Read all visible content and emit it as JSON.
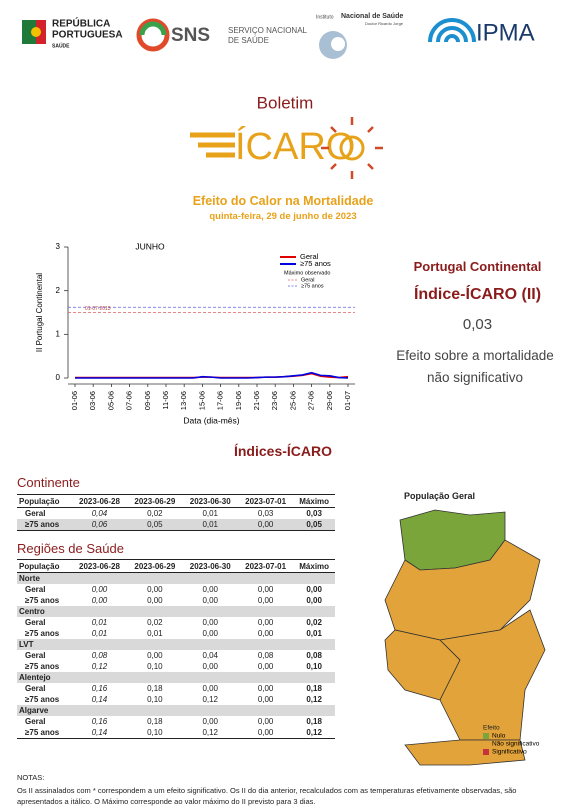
{
  "header": {
    "rp_line1": "REPÚBLICA",
    "rp_line2": "PORTUGUESA",
    "rp_sub": "SAÚDE",
    "sns": "SNS",
    "sns_line1": "SERVIÇO NACIONAL",
    "sns_line2": "DE SAÚDE",
    "insa_pre": "Instituto",
    "insa_name": "Nacional de Saúde",
    "insa_sub": "Doutor Ricardo Jorge",
    "ipma": "IPMA"
  },
  "bulletin": {
    "kicker": "Boletim",
    "brand": "ÍCARO",
    "title": "Efeito do Calor na Mortalidade",
    "date": "quinta-feira, 29 de junho de 2023"
  },
  "chart_data": {
    "type": "line",
    "title": "JUNHO",
    "x_label": "Data (dia-mês)",
    "y_label": "II Portugal Continental",
    "categories": [
      "01-06",
      null,
      "03-06",
      null,
      "05-06",
      null,
      "07-06",
      null,
      "09-06",
      null,
      "11-06",
      null,
      "13-06",
      null,
      "15-06",
      null,
      "17-06",
      null,
      "19-06",
      null,
      "21-06",
      null,
      "23-06",
      null,
      "25-06",
      null,
      "27-06",
      null,
      "29-06",
      null,
      "01-07"
    ],
    "series": [
      {
        "name": "Geral",
        "color": "#e00000",
        "values": [
          0.01,
          0.01,
          0.01,
          0.01,
          0.01,
          0.01,
          0.01,
          0.01,
          0.01,
          0.01,
          0.01,
          0.01,
          0.01,
          0.01,
          0.02,
          0.02,
          0.01,
          0.01,
          0.01,
          0.01,
          0.01,
          0.02,
          0.02,
          0.03,
          0.04,
          0.06,
          0.1,
          0.04,
          0.02,
          0.01,
          0.03
        ]
      },
      {
        "name": "≥75 anos",
        "color": "#0000e0",
        "values": [
          0.0,
          0.0,
          0.0,
          0.0,
          0.0,
          0.0,
          0.0,
          0.0,
          0.0,
          0.0,
          0.0,
          0.0,
          0.0,
          0.0,
          0.03,
          0.02,
          0.0,
          0.0,
          0.0,
          0.0,
          0.01,
          0.02,
          0.02,
          0.03,
          0.05,
          0.07,
          0.12,
          0.06,
          0.05,
          0.01,
          0.0
        ]
      }
    ],
    "reference_title": "Máximo observado",
    "reference_lines": [
      {
        "name": "Geral",
        "color": "#e06060",
        "value": 1.5
      },
      {
        "name": "≥75 anos",
        "color": "#6060e0",
        "value": 1.62
      }
    ],
    "annotation": "01-07-2013",
    "ylim": [
      0,
      3
    ],
    "yticks": [
      0,
      1,
      2,
      3
    ],
    "grid": false
  },
  "summary": {
    "region": "Portugal Continental",
    "index": "Índice-ÍCARO (II)",
    "value": "0,03",
    "effect_line1": "Efeito sobre a mortalidade",
    "effect_line2": "não significativo"
  },
  "section_title": "Índices-ÍCARO",
  "continente": {
    "title": "Continente",
    "columns": [
      "População",
      "2023-06-28",
      "2023-06-29",
      "2023-06-30",
      "2023-07-01",
      "Máximo"
    ],
    "rows": [
      [
        "Geral",
        "0,04",
        "0,02",
        "0,01",
        "0,03",
        "0,03"
      ],
      [
        "≥75 anos",
        "0,06",
        "0,05",
        "0,01",
        "0,00",
        "0,05"
      ]
    ]
  },
  "regioes": {
    "title": "Regiões de Saúde",
    "columns": [
      "População",
      "2023-06-28",
      "2023-06-29",
      "2023-06-30",
      "2023-07-01",
      "Máximo"
    ],
    "groups": [
      {
        "name": "Norte",
        "rows": [
          [
            "Geral",
            "0,00",
            "0,00",
            "0,00",
            "0,00",
            "0,00"
          ],
          [
            "≥75 anos",
            "0,00",
            "0,00",
            "0,00",
            "0,00",
            "0,00"
          ]
        ]
      },
      {
        "name": "Centro",
        "rows": [
          [
            "Geral",
            "0,01",
            "0,02",
            "0,00",
            "0,00",
            "0,02"
          ],
          [
            "≥75 anos",
            "0,01",
            "0,01",
            "0,00",
            "0,00",
            "0,01"
          ]
        ]
      },
      {
        "name": "LVT",
        "rows": [
          [
            "Geral",
            "0,08",
            "0,00",
            "0,04",
            "0,08",
            "0,08"
          ],
          [
            "≥75 anos",
            "0,12",
            "0,10",
            "0,00",
            "0,00",
            "0,10"
          ]
        ]
      },
      {
        "name": "Alentejo",
        "rows": [
          [
            "Geral",
            "0,16",
            "0,18",
            "0,00",
            "0,00",
            "0,18"
          ],
          [
            "≥75 anos",
            "0,14",
            "0,10",
            "0,12",
            "0,00",
            "0,12"
          ]
        ]
      },
      {
        "name": "Algarve",
        "rows": [
          [
            "Geral",
            "0,16",
            "0,18",
            "0,00",
            "0,00",
            "0,18"
          ],
          [
            "≥75 anos",
            "0,14",
            "0,10",
            "0,12",
            "0,00",
            "0,12"
          ]
        ]
      }
    ]
  },
  "map": {
    "title": "População Geral",
    "legend_title": "Efeito",
    "legend": [
      {
        "label": "Nulo",
        "color": "#7aa53a"
      },
      {
        "label": "Não significativo",
        "color": "#e2a33a"
      },
      {
        "label": "Significativo",
        "color": "#c8323a"
      }
    ]
  },
  "notes": {
    "title": "NOTAS:",
    "text": "Os II assinalados com * correspondem a um efeito significativo. Os II do dia anterior, recalculados com as temperaturas efetivamente observadas, são apresentados a itálico. O Máximo corresponde ao valor máximo do II previsto para 3 dias."
  }
}
